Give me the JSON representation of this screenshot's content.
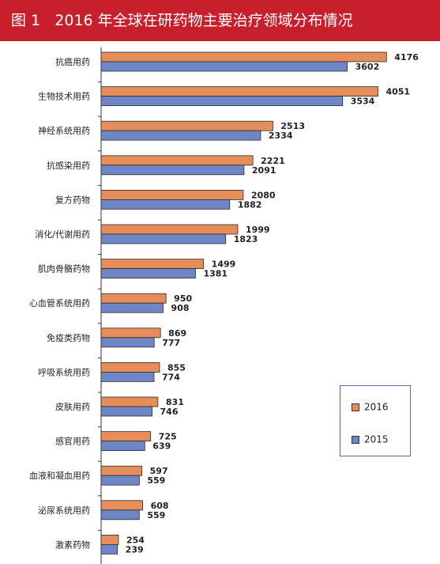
{
  "title": {
    "fig": "图 1",
    "text": "2016 年全球在研药物主要治疗领域分布情况"
  },
  "colors": {
    "header_bg": "#c81f2d",
    "series_2016": "#e58e5a",
    "series_2015": "#6f86c6",
    "bar_stroke": "#2b2b2b",
    "legend_border": "#5a6f95"
  },
  "chart_data": {
    "type": "bar",
    "orientation": "horizontal",
    "categories": [
      "抗癌用药",
      "生物技术用药",
      "神经系统用药",
      "抗感染用药",
      "复方药物",
      "消化/代谢用药",
      "肌肉骨骼药物",
      "心血管系统用药",
      "免疫类药物",
      "呼吸系统用药",
      "皮肤用药",
      "感官用药",
      "血液和凝血用药",
      "泌尿系统用药",
      "激素药物"
    ],
    "series": [
      {
        "name": "2016",
        "values": [
          4176,
          4051,
          2513,
          2221,
          2080,
          1999,
          1499,
          950,
          869,
          855,
          831,
          725,
          597,
          608,
          254
        ]
      },
      {
        "name": "2015",
        "values": [
          3602,
          3534,
          2334,
          2091,
          1882,
          1823,
          1381,
          908,
          777,
          774,
          746,
          639,
          559,
          559,
          239
        ]
      }
    ],
    "xlim": [
      0,
      4300
    ],
    "grid": false,
    "legend_position": "bottom-right",
    "data_labels": true
  }
}
